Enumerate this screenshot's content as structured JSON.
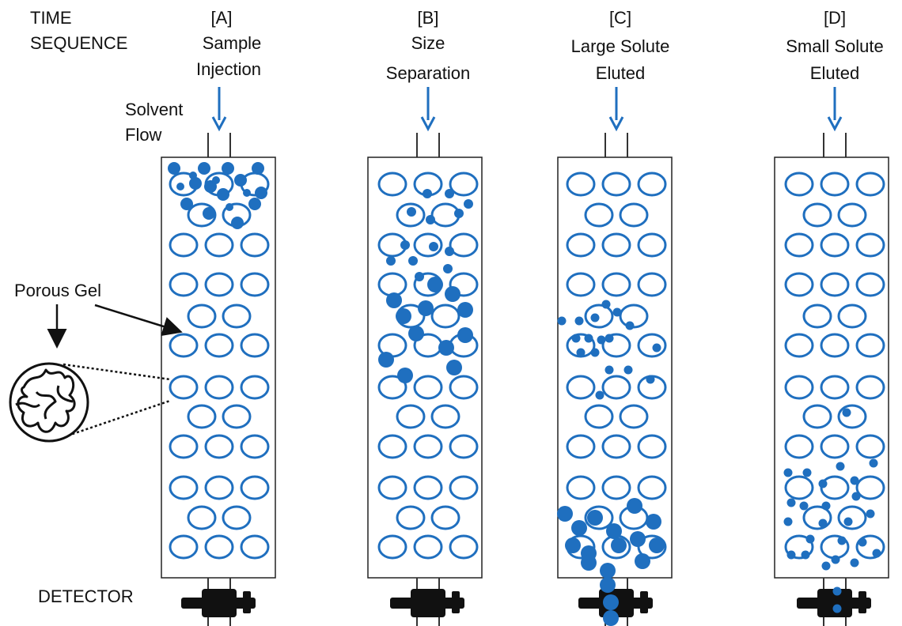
{
  "labels": {
    "time_sequence": [
      "TIME",
      "SEQUENCE"
    ],
    "solvent_flow": [
      "Solvent",
      "Flow"
    ],
    "porous_gel": "Porous Gel",
    "detector": "DETECTOR"
  },
  "stages": [
    {
      "letter": "[A]",
      "title": [
        "Sample",
        "Injection"
      ]
    },
    {
      "letter": "[B]",
      "title": [
        "Size",
        "Separation"
      ]
    },
    {
      "letter": "[C]",
      "title": [
        "Large Solute",
        "Eluted"
      ]
    },
    {
      "letter": "[D]",
      "title": [
        "Small Solute",
        "Eluted"
      ]
    }
  ],
  "colors": {
    "bead": "#1f6fbf",
    "solute": "#1f6fbf",
    "outline": "#222222",
    "detector": "#111111"
  }
}
